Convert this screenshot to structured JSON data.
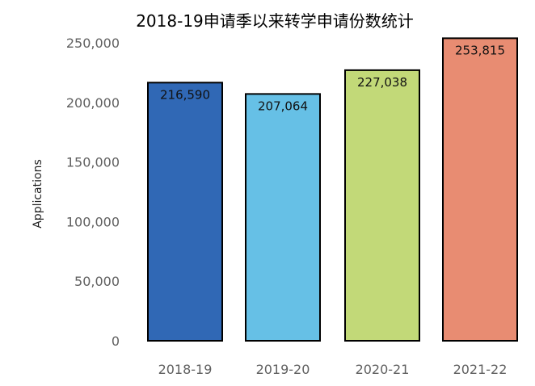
{
  "chart_data": {
    "type": "bar",
    "title": "2018-19申请季以来转学申请份数统计",
    "xlabel": "",
    "ylabel": "Applications",
    "categories": [
      "2018-19",
      "2019-20",
      "2020-21",
      "2021-22"
    ],
    "values": [
      216590,
      207064,
      227038,
      253815
    ],
    "data_labels": [
      "216,590",
      "207,064",
      "227,038",
      "253,815"
    ],
    "yticks": [
      0,
      50000,
      100000,
      150000,
      200000,
      250000
    ],
    "ytick_labels": [
      "0",
      "50,000",
      "100,000",
      "150,000",
      "200,000",
      "250,000"
    ],
    "ylim": [
      0,
      250000
    ],
    "grid": false,
    "legend": "none",
    "colors": [
      "#3068b5",
      "#66c0e6",
      "#c2d978",
      "#e88c72"
    ],
    "edge_color": "#000000"
  }
}
